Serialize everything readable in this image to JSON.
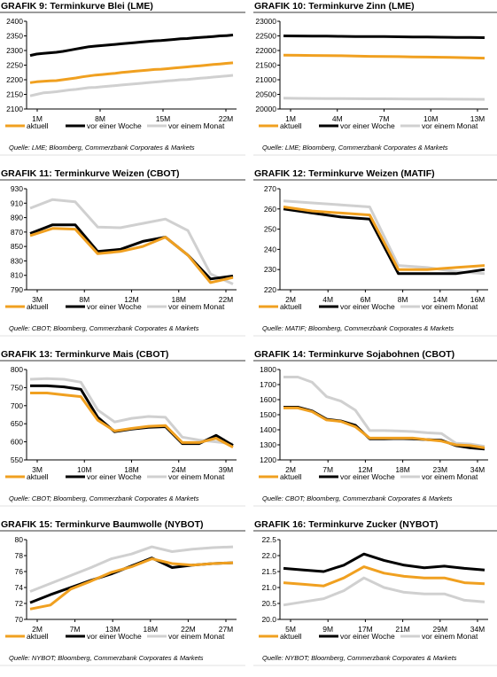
{
  "colors": {
    "aktuell": "#f0a020",
    "woche": "#000000",
    "monat": "#d0d0d0",
    "rule": "#7a7a7a",
    "axis": "#000000"
  },
  "chart_data": [
    {
      "type": "line",
      "title_prefix": "GRAFIK",
      "title": "GRAFIK 9: Terminkurve Blei (LME)",
      "x_labels": [
        "1M",
        "8M",
        "15M",
        "22M"
      ],
      "y_ticks": [
        "2100",
        "2150",
        "2200",
        "2250",
        "2300",
        "2350",
        "2400"
      ],
      "ylim": [
        2100,
        2400
      ],
      "series": [
        {
          "name": "aktuell",
          "values": [
            2190,
            2193,
            2195,
            2196,
            2197,
            2200,
            2203,
            2206,
            2210,
            2213,
            2216,
            2218,
            2220,
            2222,
            2225,
            2227,
            2229,
            2231,
            2233,
            2235,
            2236,
            2238,
            2240,
            2242,
            2244,
            2246,
            2248,
            2250,
            2252,
            2254,
            2256,
            2258
          ]
        },
        {
          "name": "vor einer Woche",
          "values": [
            2283,
            2288,
            2290,
            2292,
            2294,
            2297,
            2301,
            2305,
            2309,
            2313,
            2315,
            2317,
            2319,
            2321,
            2323,
            2325,
            2327,
            2329,
            2331,
            2333,
            2334,
            2336,
            2338,
            2340,
            2341,
            2343,
            2345,
            2346,
            2348,
            2350,
            2351,
            2353
          ]
        },
        {
          "name": "vor einem Monat",
          "values": [
            2145,
            2150,
            2155,
            2157,
            2159,
            2162,
            2165,
            2167,
            2170,
            2173,
            2174,
            2176,
            2178,
            2180,
            2182,
            2184,
            2186,
            2188,
            2190,
            2192,
            2194,
            2196,
            2198,
            2200,
            2201,
            2203,
            2205,
            2207,
            2209,
            2211,
            2213,
            2215
          ]
        }
      ],
      "source": "Quelle: LME; Bloomberg, Commerzbank Corporates & Markets"
    },
    {
      "type": "line",
      "title": "GRAFIK 10: Terminkurve Zinn (LME)",
      "x_labels": [
        "1M",
        "4M",
        "7M",
        "10M",
        "13M"
      ],
      "y_ticks": [
        "20000",
        "20500",
        "21000",
        "21500",
        "22000",
        "22500",
        "23000"
      ],
      "ylim": [
        20000,
        23000
      ],
      "series": [
        {
          "name": "aktuell",
          "values": [
            21840,
            21835,
            21830,
            21825,
            21820,
            21810,
            21800,
            21795,
            21790,
            21780,
            21775,
            21770,
            21760,
            21750,
            21740
          ]
        },
        {
          "name": "vor einer Woche",
          "values": [
            22500,
            22498,
            22495,
            22490,
            22485,
            22480,
            22478,
            22475,
            22470,
            22465,
            22460,
            22455,
            22450,
            22445,
            22440
          ]
        },
        {
          "name": "vor einem Monat",
          "values": [
            20370,
            20365,
            20360,
            20358,
            20355,
            20352,
            20350,
            20348,
            20345,
            20342,
            20340,
            20338,
            20336,
            20334,
            20330
          ]
        }
      ],
      "source": "Quelle: LME; Bloomberg, Commerzbank Corporates & Markets"
    },
    {
      "type": "line",
      "title": "GRAFIK 11: Terminkurve Weizen (CBOT)",
      "x_labels": [
        "3M",
        "8M",
        "12M",
        "18M",
        "22M"
      ],
      "y_ticks": [
        "790",
        "810",
        "830",
        "850",
        "870",
        "890",
        "910",
        "930"
      ],
      "ylim": [
        790,
        930
      ],
      "series": [
        {
          "name": "aktuell",
          "values": [
            865,
            875,
            874,
            840,
            843,
            850,
            863,
            838,
            800,
            807
          ]
        },
        {
          "name": "vor einer Woche",
          "values": [
            868,
            880,
            880,
            843,
            846,
            857,
            863,
            838,
            805,
            809
          ]
        },
        {
          "name": "vor einem Monat",
          "values": [
            903,
            915,
            912,
            877,
            876,
            882,
            888,
            872,
            812,
            798
          ]
        }
      ],
      "source": "Quelle: CBOT; Bloomberg, Commerzbank Corporates & Markets"
    },
    {
      "type": "line",
      "title": "GRAFIK 12: Terminkurve Weizen (MATIF)",
      "x_labels": [
        "2M",
        "4M",
        "6M",
        "8M",
        "14M",
        "16M"
      ],
      "y_ticks": [
        "220",
        "230",
        "240",
        "250",
        "260",
        "270"
      ],
      "ylim": [
        220,
        270
      ],
      "series": [
        {
          "name": "aktuell",
          "values": [
            261,
            259,
            258,
            257,
            230,
            230,
            231,
            232
          ]
        },
        {
          "name": "vor einer Woche",
          "values": [
            260,
            258,
            256,
            255,
            228,
            228,
            228,
            230
          ]
        },
        {
          "name": "vor einem Monat",
          "values": [
            264,
            263,
            262,
            261,
            232,
            231,
            229,
            228
          ]
        }
      ],
      "source": "Quelle: MATIF; Bloomberg, Commerzbank Corporates & Markets"
    },
    {
      "type": "line",
      "title": "GRAFIK 13: Terminkurve Mais (CBOT)",
      "x_labels": [
        "3M",
        "10M",
        "18M",
        "24M",
        "39M"
      ],
      "y_ticks": [
        "550",
        "600",
        "650",
        "700",
        "750",
        "800"
      ],
      "ylim": [
        550,
        800
      ],
      "series": [
        {
          "name": "aktuell",
          "values": [
            735,
            735,
            730,
            725,
            660,
            630,
            637,
            643,
            645,
            598,
            598,
            610,
            585
          ]
        },
        {
          "name": "vor einer Woche",
          "values": [
            755,
            755,
            752,
            745,
            668,
            628,
            635,
            640,
            642,
            595,
            595,
            618,
            590
          ]
        },
        {
          "name": "vor einem Monat",
          "values": [
            773,
            775,
            773,
            765,
            688,
            655,
            665,
            670,
            668,
            613,
            605,
            600,
            594
          ]
        }
      ],
      "source": "Quelle: CBOT; Bloomberg, Commerzbank Corporates & Markets"
    },
    {
      "type": "line",
      "title": "GRAFIK 14: Terminkurve Sojabohnen (CBOT)",
      "x_labels": [
        "2M",
        "7M",
        "12M",
        "18M",
        "23M",
        "34M"
      ],
      "y_ticks": [
        "1200",
        "1300",
        "1400",
        "1500",
        "1600",
        "1700",
        "1800"
      ],
      "ylim": [
        1200,
        1800
      ],
      "series": [
        {
          "name": "aktuell",
          "values": [
            1545,
            1545,
            1520,
            1465,
            1455,
            1420,
            1345,
            1345,
            1345,
            1345,
            1335,
            1325,
            1300,
            1295,
            1280
          ]
        },
        {
          "name": "vor einer Woche",
          "values": [
            1550,
            1550,
            1525,
            1470,
            1458,
            1430,
            1340,
            1340,
            1342,
            1340,
            1335,
            1330,
            1295,
            1280,
            1272
          ]
        },
        {
          "name": "vor einem Monat",
          "values": [
            1750,
            1750,
            1715,
            1620,
            1590,
            1530,
            1395,
            1395,
            1392,
            1388,
            1380,
            1375,
            1310,
            1305,
            1290
          ]
        }
      ],
      "source": "Quelle: CBOT; Bloomberg, Commerzbank Corporates & Markets"
    },
    {
      "type": "line",
      "title": "GRAFIK 15: Terminkurve Baumwolle (NYBOT)",
      "x_labels": [
        "2M",
        "7M",
        "13M",
        "18M",
        "22M",
        "27M"
      ],
      "y_ticks": [
        "70",
        "72",
        "74",
        "76",
        "78",
        "80"
      ],
      "ylim": [
        70,
        80
      ],
      "series": [
        {
          "name": "aktuell",
          "values": [
            71.3,
            71.8,
            73.8,
            74.8,
            75.9,
            76.6,
            77.6,
            77.0,
            76.8,
            77.0,
            77.1
          ]
        },
        {
          "name": "vor einer Woche",
          "values": [
            72.1,
            73.1,
            74.0,
            74.9,
            75.7,
            76.7,
            77.7,
            76.5,
            76.8,
            77.0,
            77.1
          ]
        },
        {
          "name": "vor einem Monat",
          "values": [
            73.5,
            74.5,
            75.5,
            76.5,
            77.6,
            78.2,
            79.1,
            78.5,
            78.8,
            79.0,
            79.1
          ]
        }
      ],
      "source": "Quelle: NYBOT; Bloomberg, Commerzbank Corporates & Markets"
    },
    {
      "type": "line",
      "title": "GRAFIK 16: Terminkurve Zucker (NYBOT)",
      "x_labels": [
        "5M",
        "9M",
        "17M",
        "21M",
        "29M",
        "34M"
      ],
      "y_ticks": [
        "20.0",
        "20.5",
        "21.0",
        "21.5",
        "22.0",
        "22.5"
      ],
      "ylim": [
        20,
        22.5
      ],
      "series": [
        {
          "name": "aktuell",
          "values": [
            21.15,
            21.1,
            21.05,
            21.3,
            21.65,
            21.45,
            21.35,
            21.3,
            21.3,
            21.15,
            21.12
          ]
        },
        {
          "name": "vor einer Woche",
          "values": [
            21.6,
            21.55,
            21.5,
            21.7,
            22.05,
            21.85,
            21.7,
            21.62,
            21.67,
            21.6,
            21.55
          ]
        },
        {
          "name": "vor einem Monat",
          "values": [
            20.45,
            20.55,
            20.65,
            20.9,
            21.3,
            21.0,
            20.85,
            20.8,
            20.8,
            20.6,
            20.55
          ]
        }
      ],
      "source": "Quelle: NYBOT; Bloomberg, Commerzbank Corporates & Markets"
    }
  ]
}
